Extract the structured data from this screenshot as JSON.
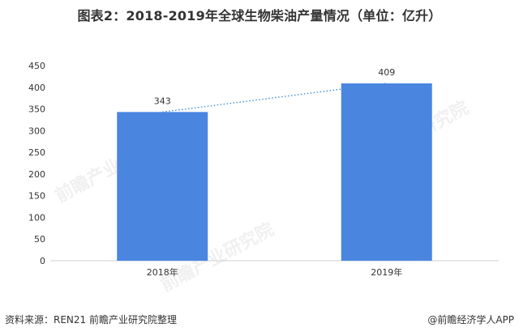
{
  "header": {
    "title": "图表2：2018-2019年全球生物柴油产量情况（单位：亿升）"
  },
  "footer": {
    "source": "资料来源：REN21 前瞻产业研究院整理",
    "brand": "@前瞻经济学人APP"
  },
  "watermark": {
    "text": "前瞻产业研究院"
  },
  "colors": {
    "bar": "#4a86e0",
    "trend": "#3d8fd6",
    "axis": "#cfcfcf"
  },
  "chart_data": {
    "type": "bar",
    "title": "图表2：2018-2019年全球生物柴油产量情况（单位：亿升）",
    "categories": [
      "2018年",
      "2019年"
    ],
    "values": [
      343,
      409
    ],
    "data_labels": [
      "343",
      "409"
    ],
    "ylim": [
      0,
      450
    ],
    "yticks": [
      0,
      50,
      100,
      150,
      200,
      250,
      300,
      350,
      400,
      450
    ],
    "grid": false,
    "legend": "none",
    "trendline": "dotted"
  }
}
